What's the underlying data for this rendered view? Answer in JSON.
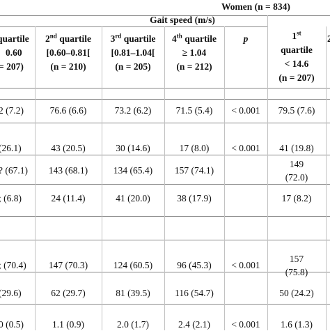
{
  "header": {
    "women_group": "Women (n = 834)",
    "gait_speed": "Gait speed (m/s)",
    "p_label": "p",
    "col0": {
      "line1": "quartile",
      "line2": "0.60",
      "line3": "= 207)"
    },
    "col1": {
      "ord": "2",
      "sup": "nd",
      "rest": " quartile",
      "line2": "[0.60–0.81[",
      "line3": "(n = 210)"
    },
    "col2": {
      "ord": "3",
      "sup": "rd",
      "rest": " quartile",
      "line2": "[0.81–1.04[",
      "line3": "(n = 205)"
    },
    "col3": {
      "ord": "4",
      "sup": "th",
      "rest": " quartile",
      "line2": "≥ 1.04",
      "line3": "(n = 212)"
    },
    "col5": {
      "ord": "1",
      "sup": "st",
      "line2": "quartile",
      "line3": "< 14.6",
      "line4": "(n = 207)"
    },
    "col6_fragment": "2"
  },
  "rows": [
    {
      "c0": "2 (7.2)",
      "c1": "76.6 (6.6)",
      "c2": "73.2 (6.2)",
      "c3": "71.5 (5.4)",
      "p": "< 0.001",
      "c5": "79.5 (7.6)"
    },
    {
      "c0": "(26.1)",
      "c1": "43 (20.5)",
      "c2": "30 (14.6)",
      "c3": "17 (8.0)",
      "p": "< 0.001",
      "c5": "41 (19.8)"
    },
    {
      "c0": "? (67.1)",
      "c1": "143 (68.1)",
      "c2": "134 (65.4)",
      "c3": "157 (74.1)",
      "p": "",
      "c5a": "149",
      "c5b": "(72.0)"
    },
    {
      "c0": "; (6.8)",
      "c1": "24 (11.4)",
      "c2": "41 (20.0)",
      "c3": "38 (17.9)",
      "p": "",
      "c5": "17 (8.2)"
    },
    {
      "c0": "; (70.4)",
      "c1": "147 (70.3)",
      "c2": "124 (60.5)",
      "c3": "96 (45.3)",
      "p": "< 0.001",
      "c5a": "157",
      "c5b": "(75.8)"
    },
    {
      "c0": "(29.6)",
      "c1": "62 (29.7)",
      "c2": "81 (39.5)",
      "c3": "116 (54.7)",
      "p": "",
      "c5": "50 (24.2)"
    },
    {
      "c0": "0 (0.5)",
      "c1": "1.1 (0.9)",
      "c2": "2.0 (1.7)",
      "c3": "2.4 (2.1)",
      "p": "< 0.001",
      "c5": "1.6 (1.3)"
    }
  ]
}
